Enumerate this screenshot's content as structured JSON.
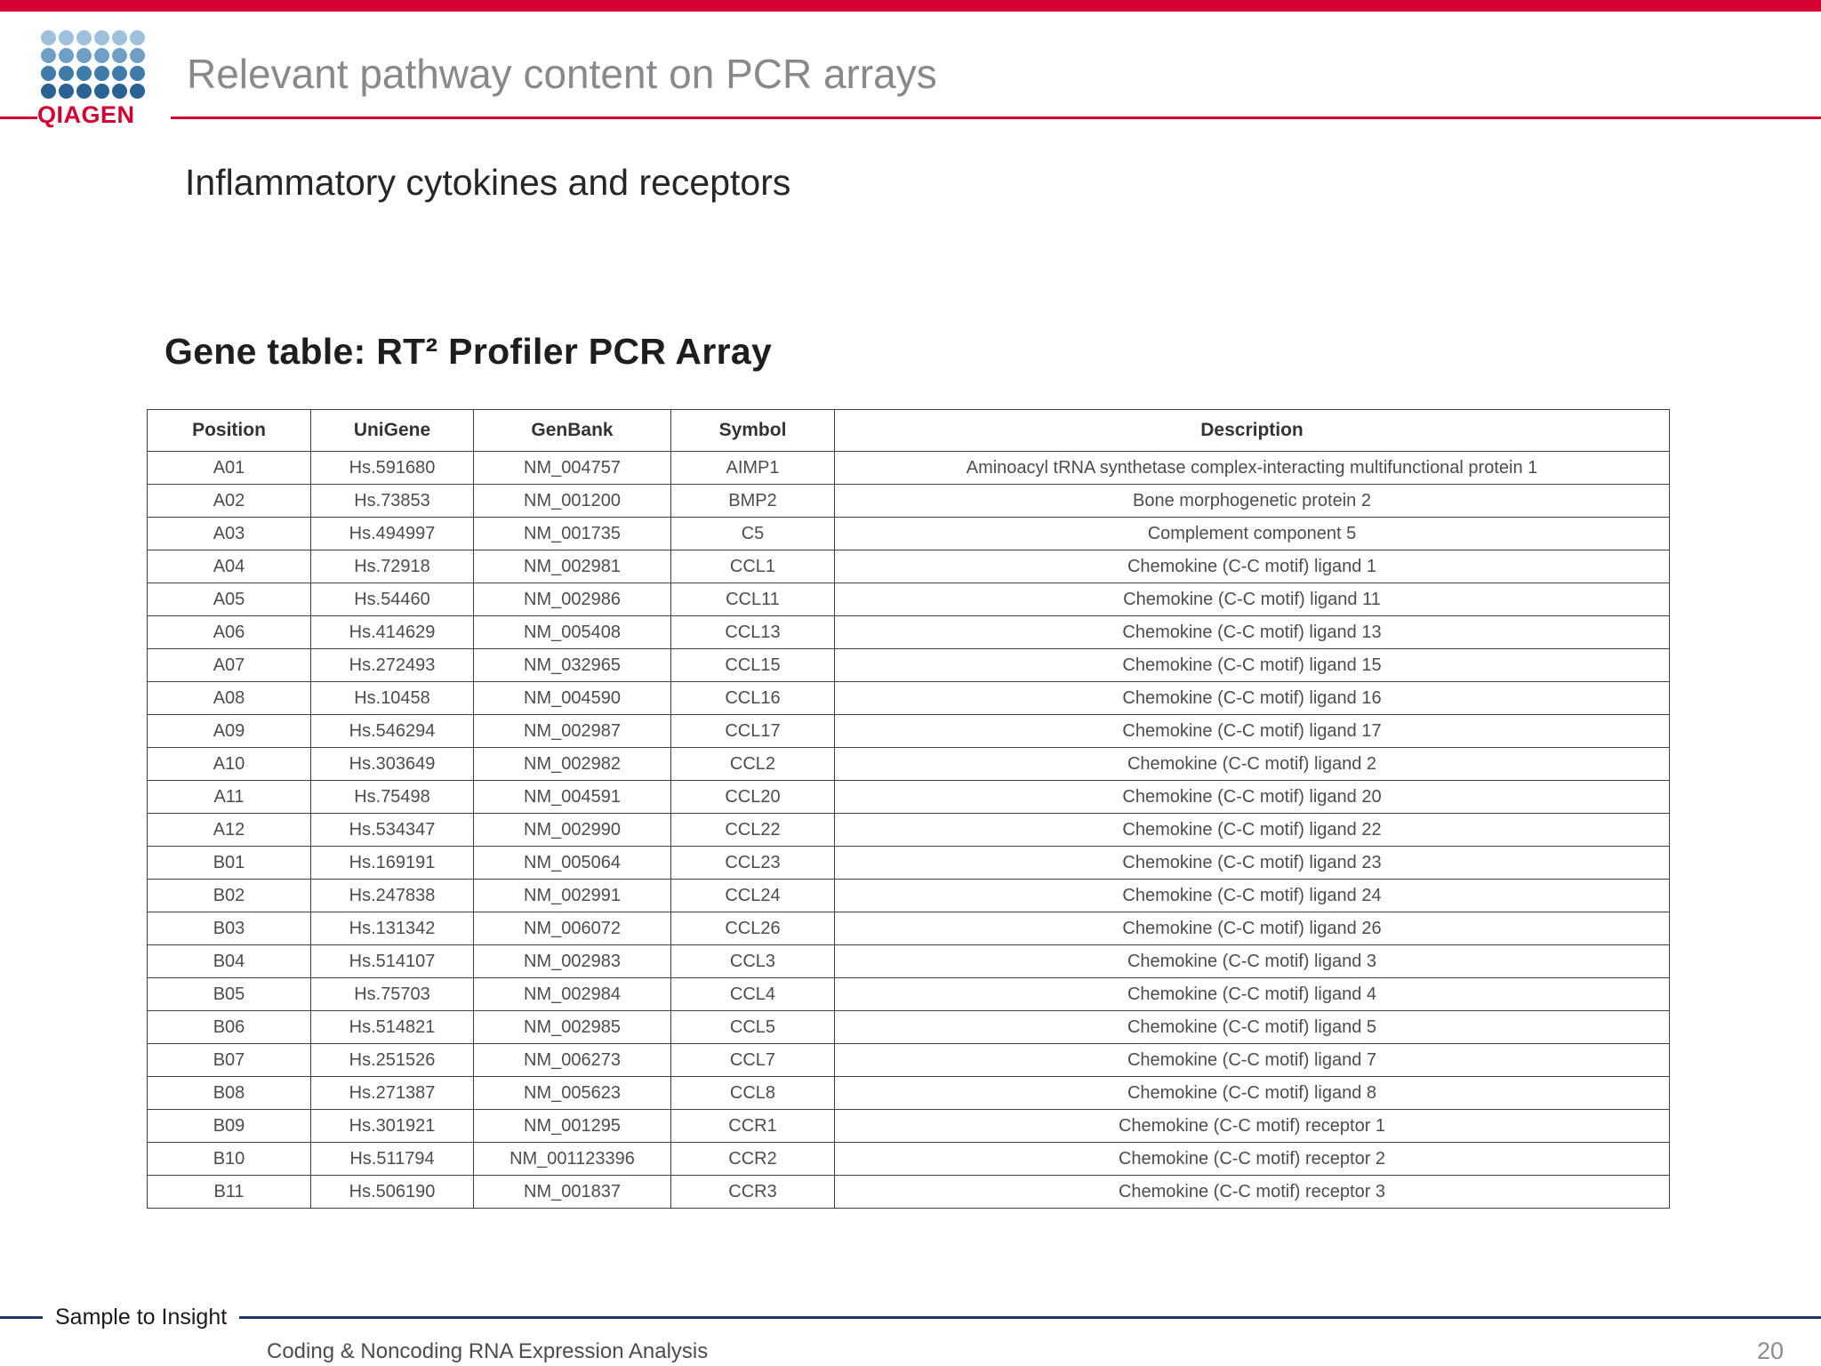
{
  "slide": {
    "title": "Relevant pathway content on PCR arrays",
    "subtitle": "Inflammatory cytokines and receptors",
    "table_title": "Gene table: RT² Profiler PCR Array"
  },
  "logo": {
    "text": "QIAGEN",
    "dot_row_colors": [
      "#9fc0dc",
      "#6f9fc6",
      "#3f7cab",
      "#2a6294"
    ],
    "dots_per_row": 6
  },
  "table": {
    "headers": [
      "Position",
      "UniGene",
      "GenBank",
      "Symbol",
      "Description"
    ],
    "rows": [
      [
        "A01",
        "Hs.591680",
        "NM_004757",
        "AIMP1",
        "Aminoacyl tRNA synthetase complex-interacting multifunctional protein 1"
      ],
      [
        "A02",
        "Hs.73853",
        "NM_001200",
        "BMP2",
        "Bone morphogenetic protein 2"
      ],
      [
        "A03",
        "Hs.494997",
        "NM_001735",
        "C5",
        "Complement component 5"
      ],
      [
        "A04",
        "Hs.72918",
        "NM_002981",
        "CCL1",
        "Chemokine (C-C motif) ligand 1"
      ],
      [
        "A05",
        "Hs.54460",
        "NM_002986",
        "CCL11",
        "Chemokine (C-C motif) ligand 11"
      ],
      [
        "A06",
        "Hs.414629",
        "NM_005408",
        "CCL13",
        "Chemokine (C-C motif) ligand 13"
      ],
      [
        "A07",
        "Hs.272493",
        "NM_032965",
        "CCL15",
        "Chemokine (C-C motif) ligand 15"
      ],
      [
        "A08",
        "Hs.10458",
        "NM_004590",
        "CCL16",
        "Chemokine (C-C motif) ligand 16"
      ],
      [
        "A09",
        "Hs.546294",
        "NM_002987",
        "CCL17",
        "Chemokine (C-C motif) ligand 17"
      ],
      [
        "A10",
        "Hs.303649",
        "NM_002982",
        "CCL2",
        "Chemokine (C-C motif) ligand 2"
      ],
      [
        "A11",
        "Hs.75498",
        "NM_004591",
        "CCL20",
        "Chemokine (C-C motif) ligand 20"
      ],
      [
        "A12",
        "Hs.534347",
        "NM_002990",
        "CCL22",
        "Chemokine (C-C motif) ligand 22"
      ],
      [
        "B01",
        "Hs.169191",
        "NM_005064",
        "CCL23",
        "Chemokine (C-C motif) ligand 23"
      ],
      [
        "B02",
        "Hs.247838",
        "NM_002991",
        "CCL24",
        "Chemokine (C-C motif) ligand 24"
      ],
      [
        "B03",
        "Hs.131342",
        "NM_006072",
        "CCL26",
        "Chemokine (C-C motif) ligand 26"
      ],
      [
        "B04",
        "Hs.514107",
        "NM_002983",
        "CCL3",
        "Chemokine (C-C motif) ligand 3"
      ],
      [
        "B05",
        "Hs.75703",
        "NM_002984",
        "CCL4",
        "Chemokine (C-C motif) ligand 4"
      ],
      [
        "B06",
        "Hs.514821",
        "NM_002985",
        "CCL5",
        "Chemokine (C-C motif) ligand 5"
      ],
      [
        "B07",
        "Hs.251526",
        "NM_006273",
        "CCL7",
        "Chemokine (C-C motif) ligand 7"
      ],
      [
        "B08",
        "Hs.271387",
        "NM_005623",
        "CCL8",
        "Chemokine (C-C motif) ligand 8"
      ],
      [
        "B09",
        "Hs.301921",
        "NM_001295",
        "CCR1",
        "Chemokine (C-C motif) receptor 1"
      ],
      [
        "B10",
        "Hs.511794",
        "NM_001123396",
        "CCR2",
        "Chemokine (C-C motif) receptor 2"
      ],
      [
        "B11",
        "Hs.506190",
        "NM_001837",
        "CCR3",
        "Chemokine (C-C motif) receptor 3"
      ]
    ]
  },
  "footer": {
    "tagline": "Sample to Insight",
    "left_text": "Coding & Noncoding RNA Expression Analysis",
    "page_number": "20"
  },
  "colors": {
    "accent_red": "#d50032",
    "footer_navy": "#1f3864",
    "title_gray": "#87898c"
  }
}
